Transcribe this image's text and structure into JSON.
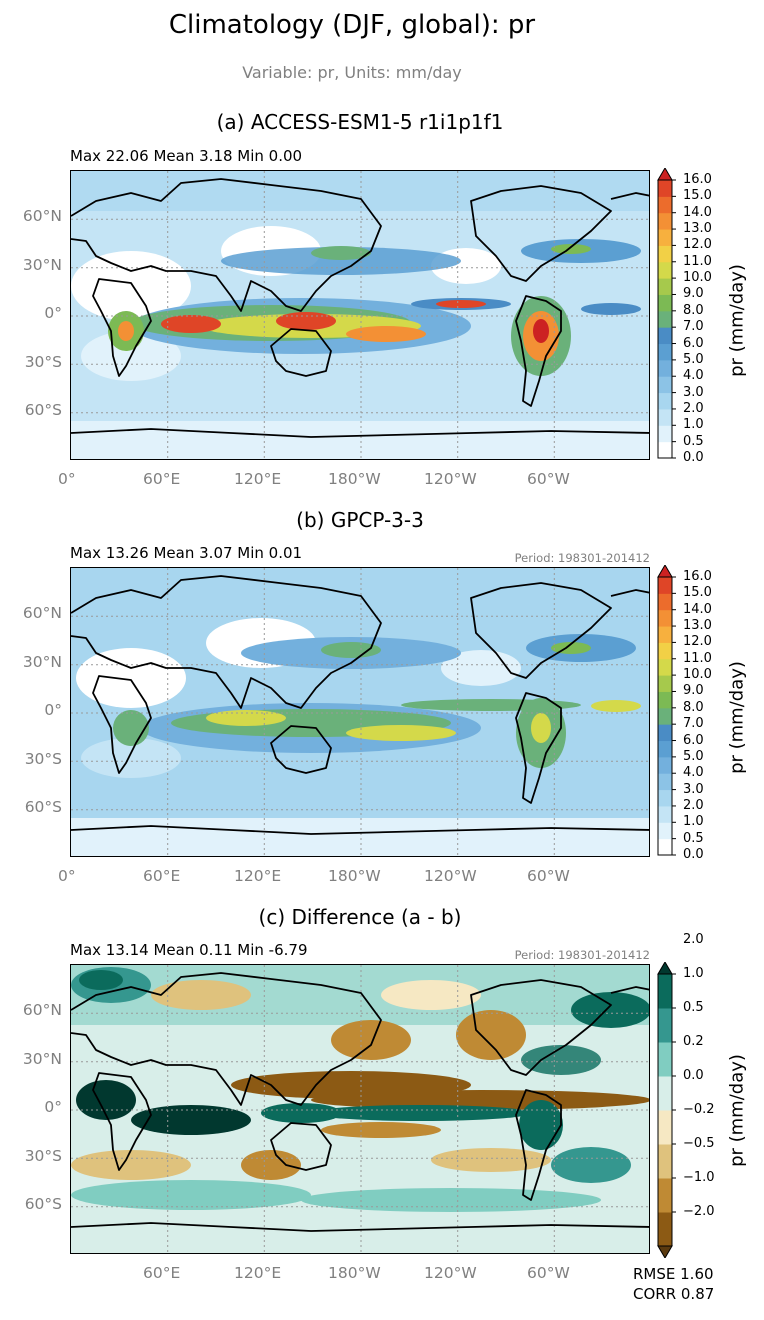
{
  "figure": {
    "title": "Climatology (DJF, global): pr",
    "subtitle": "Variable: pr, Units: mm/day"
  },
  "panels": [
    {
      "title": "(a) ACCESS-ESM1-5 r1i1p1f1",
      "stats": "Max 22.06 Mean 3.18 Min 0.00",
      "period": "",
      "colorbar_label": "pr (mm/day)",
      "colorbar_levels": [
        "0.0",
        "0.5",
        "1.0",
        "2.0",
        "3.0",
        "4.0",
        "5.0",
        "6.0",
        "7.0",
        "8.0",
        "9.0",
        "10.0",
        "11.0",
        "12.0",
        "13.0",
        "14.0",
        "15.0",
        "16.0"
      ],
      "colorbar_colors": [
        "#ffffff",
        "#e1f2fb",
        "#c4e4f5",
        "#a8d6ef",
        "#8cc3e6",
        "#73b0dd",
        "#5b9fd2",
        "#4a8cc5",
        "#6ab17a",
        "#7cba54",
        "#a6c94c",
        "#d4d94a",
        "#f2d046",
        "#f7b03e",
        "#f39035",
        "#ec6c2c",
        "#df4527",
        "#cc2222"
      ],
      "colorbar_extend": "max"
    },
    {
      "title": "(b) GPCP-3-3",
      "stats": "Max 13.26 Mean 3.07 Min 0.01",
      "period": "Period: 198301-201412",
      "colorbar_label": "pr (mm/day)",
      "colorbar_levels": [
        "0.0",
        "0.5",
        "1.0",
        "2.0",
        "3.0",
        "4.0",
        "5.0",
        "6.0",
        "7.0",
        "8.0",
        "9.0",
        "10.0",
        "11.0",
        "12.0",
        "13.0",
        "14.0",
        "15.0",
        "16.0"
      ],
      "colorbar_colors": [
        "#ffffff",
        "#e1f2fb",
        "#c4e4f5",
        "#a8d6ef",
        "#8cc3e6",
        "#73b0dd",
        "#5b9fd2",
        "#4a8cc5",
        "#6ab17a",
        "#7cba54",
        "#a6c94c",
        "#d4d94a",
        "#f2d046",
        "#f7b03e",
        "#f39035",
        "#ec6c2c",
        "#df4527",
        "#cc2222"
      ],
      "colorbar_extend": "max"
    },
    {
      "title": "(c) Difference (a - b)",
      "stats": "Max 13.14 Mean 0.11 Min -6.79",
      "period": "Period: 198301-201412",
      "colorbar_label": "pr (mm/day)",
      "colorbar_levels": [
        "−2.0",
        "−1.0",
        "−0.5",
        "−0.2",
        "0.0",
        "0.2",
        "0.5",
        "1.0",
        "2.0"
      ],
      "colorbar_colors": [
        "#5b3a0f",
        "#8c5a14",
        "#bf8a34",
        "#dfc27d",
        "#f6e8c3",
        "#d8eee9",
        "#80cdc1",
        "#35978f",
        "#0b6b5c",
        "#01382f"
      ],
      "colorbar_extend": "both"
    }
  ],
  "axes": {
    "lon_ticks_ab": [
      "0°",
      "60°E",
      "120°E",
      "180°W",
      "120°W",
      "60°W"
    ],
    "lon_ticks_c": [
      "60°E",
      "120°E",
      "180°W",
      "120°W",
      "60°W"
    ],
    "lat_ticks": [
      "60°N",
      "30°N",
      "0°",
      "30°S",
      "60°S"
    ]
  },
  "metrics": {
    "rmse": "RMSE 1.60",
    "corr": "CORR 0.87"
  },
  "chart_data": [
    {
      "type": "heatmap",
      "title": "(a) ACCESS-ESM1-5 r1i1p1f1",
      "projection": "PlateCarree, central longitude 180",
      "x_ticks": [
        "0°",
        "60°E",
        "120°E",
        "180°W",
        "120°W",
        "60°W"
      ],
      "y_ticks": [
        "60°N",
        "30°N",
        "0°",
        "30°S",
        "60°S"
      ],
      "max": 22.06,
      "mean": 3.18,
      "min": 0.0,
      "colorbar_range": [
        0,
        16
      ],
      "units": "mm/day",
      "grid": true
    },
    {
      "type": "heatmap",
      "title": "(b) GPCP-3-3",
      "x_ticks": [
        "0°",
        "60°E",
        "120°E",
        "180°W",
        "120°W",
        "60°W"
      ],
      "y_ticks": [
        "60°N",
        "30°N",
        "0°",
        "30°S",
        "60°S"
      ],
      "max": 13.26,
      "mean": 3.07,
      "min": 0.01,
      "colorbar_range": [
        0,
        16
      ],
      "units": "mm/day",
      "grid": true
    },
    {
      "type": "heatmap",
      "title": "(c) Difference (a - b)",
      "x_ticks": [
        "60°E",
        "120°E",
        "180°W",
        "120°W",
        "60°W"
      ],
      "y_ticks": [
        "60°N",
        "30°N",
        "0°",
        "30°S",
        "60°S"
      ],
      "max": 13.14,
      "mean": 0.11,
      "min": -6.79,
      "colorbar_range": [
        -2,
        2
      ],
      "units": "mm/day",
      "rmse": 1.6,
      "corr": 0.87,
      "grid": true
    }
  ]
}
